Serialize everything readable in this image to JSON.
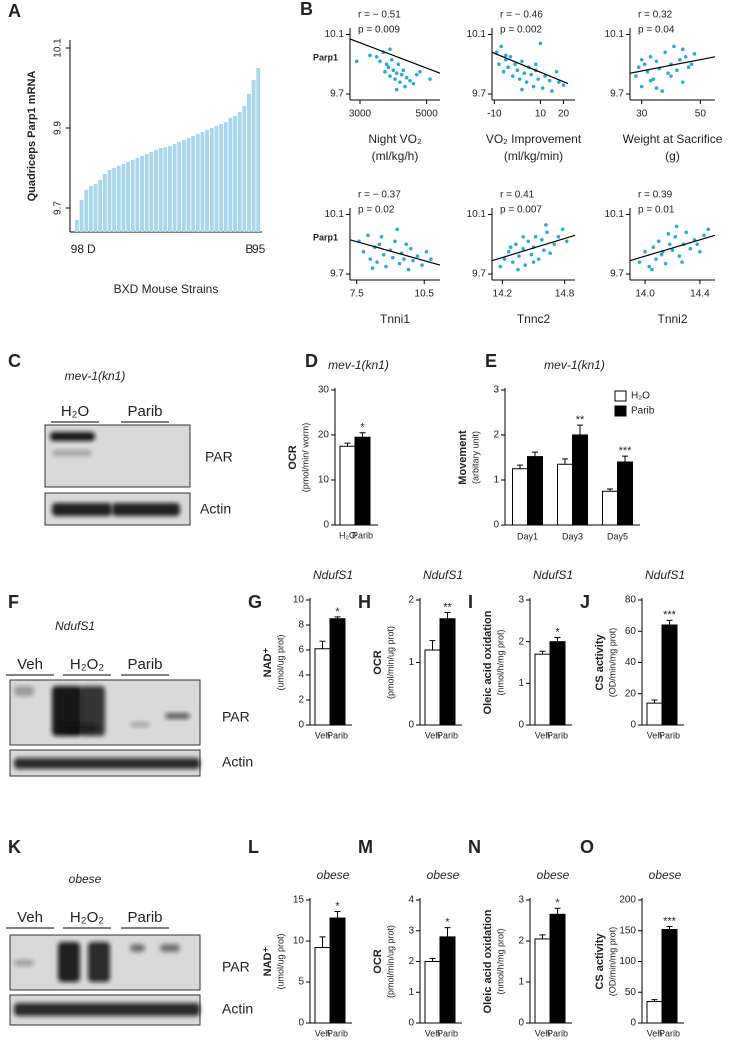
{
  "chart_data": [
    {
      "type": "bar",
      "panel": "A",
      "ylabel": "Quadriceps Parp1 mRNA",
      "xlabel": "BXD Mouse Strains",
      "color": "#a9d6ea",
      "categories": [
        "98",
        null,
        null,
        "D",
        null,
        null,
        null,
        null,
        null,
        null,
        null,
        null,
        null,
        null,
        null,
        null,
        null,
        null,
        null,
        null,
        null,
        null,
        null,
        null,
        null,
        null,
        null,
        null,
        null,
        null,
        null,
        null,
        null,
        null,
        null,
        null,
        null,
        "B",
        null,
        "95"
      ],
      "values": [
        9.67,
        9.72,
        9.745,
        9.755,
        9.76,
        9.77,
        9.785,
        9.795,
        9.8,
        9.805,
        9.81,
        9.815,
        9.82,
        9.825,
        9.83,
        9.835,
        9.84,
        9.845,
        9.85,
        9.852,
        9.855,
        9.86,
        9.865,
        9.87,
        9.875,
        9.88,
        9.885,
        9.89,
        9.895,
        9.9,
        9.905,
        9.91,
        9.915,
        9.925,
        9.93,
        9.94,
        9.955,
        9.985,
        10.02,
        10.05
      ],
      "ylim": [
        9.64,
        10.12
      ],
      "yticks": [
        9.7,
        9.9,
        10.1
      ]
    },
    {
      "type": "scatter",
      "panel": "B",
      "annotations": [
        "r = − 0.51",
        "p = 0.009"
      ],
      "ylabel": "Parp1",
      "xlabel": [
        "Night VO₂",
        "(ml/kg/h)"
      ],
      "color": "#29a9e0",
      "x": [
        3500,
        3600,
        3700,
        3750,
        3800,
        3850,
        3900,
        3950,
        4000,
        4050,
        4100,
        4150,
        4200,
        4250,
        4300,
        4350,
        4400,
        4500,
        4600,
        4700,
        3300,
        3900,
        4100,
        4800,
        5100,
        2900
      ],
      "y": [
        9.95,
        9.92,
        9.98,
        9.85,
        9.9,
        9.88,
        9.82,
        9.93,
        9.86,
        9.8,
        9.84,
        9.9,
        9.78,
        9.83,
        9.86,
        9.75,
        9.81,
        9.79,
        9.77,
        9.83,
        9.96,
        10.0,
        9.73,
        9.85,
        9.8,
        9.92
      ],
      "fit": {
        "x": [
          2700,
          5400
        ],
        "y": [
          10.07,
          9.84
        ]
      },
      "xlim": [
        2700,
        5400
      ],
      "xticks": [
        3000,
        5000
      ],
      "ylim": [
        9.66,
        10.13
      ],
      "yticks": [
        9.7,
        10.1
      ]
    },
    {
      "type": "scatter",
      "annotations": [
        "r = − 0.46",
        "p = 0.002"
      ],
      "xlabel": [
        "VO₂ Improvement",
        "(ml/kg/min)"
      ],
      "color": "#29a9e0",
      "x": [
        -9,
        -8,
        -7,
        -6,
        -5,
        -4,
        -3,
        -2,
        -1,
        0,
        1,
        2,
        3,
        4,
        5,
        6,
        7,
        8,
        9,
        10,
        11,
        12,
        14,
        15,
        17,
        18,
        20,
        -5,
        2,
        8
      ],
      "y": [
        9.98,
        9.9,
        10.02,
        9.85,
        9.93,
        9.88,
        9.95,
        9.82,
        9.9,
        9.86,
        9.8,
        9.92,
        9.84,
        9.78,
        9.88,
        9.83,
        9.75,
        9.86,
        9.8,
        10.04,
        9.74,
        9.82,
        9.79,
        9.72,
        9.85,
        9.78,
        9.76,
        9.96,
        9.73,
        9.9
      ],
      "fit": {
        "x": [
          -11,
          22
        ],
        "y": [
          9.98,
          9.77
        ]
      },
      "xlim": [
        -11,
        25
      ],
      "xticks": [
        -10,
        10,
        20
      ],
      "ylim": [
        9.66,
        10.13
      ],
      "yticks": [
        9.7,
        10.1
      ]
    },
    {
      "type": "scatter",
      "annotations": [
        "r = 0.32",
        "p = 0.04"
      ],
      "xlabel": [
        "Weight at Sacrifice",
        "(g)"
      ],
      "color": "#29a9e0",
      "x": [
        28,
        29,
        30,
        31,
        32,
        33,
        34,
        35,
        36,
        37,
        38,
        39,
        40,
        41,
        42,
        43,
        44,
        45,
        46,
        47,
        48,
        30,
        35,
        40,
        44,
        33
      ],
      "y": [
        9.82,
        9.88,
        9.75,
        9.9,
        9.85,
        9.95,
        9.8,
        9.92,
        9.87,
        9.72,
        9.98,
        9.84,
        9.9,
        10.02,
        9.86,
        9.93,
        9.78,
        9.95,
        9.88,
        9.9,
        9.97,
        9.93,
        9.74,
        9.82,
        10.0,
        9.79
      ],
      "fit": {
        "x": [
          26,
          55
        ],
        "y": [
          9.84,
          9.95
        ]
      },
      "xlim": [
        26,
        55
      ],
      "xticks": [
        30,
        50
      ],
      "ylim": [
        9.66,
        10.13
      ],
      "yticks": [
        9.7,
        10.1
      ]
    },
    {
      "type": "scatter",
      "annotations": [
        "r = − 0.37",
        "p = 0.02"
      ],
      "ylabel": "Parp1",
      "xlabel": [
        "Tnni1"
      ],
      "color": "#29a9e0",
      "x": [
        7.6,
        7.8,
        8.0,
        8.1,
        8.3,
        8.4,
        8.5,
        8.7,
        8.8,
        9.0,
        9.1,
        9.2,
        9.4,
        9.5,
        9.6,
        9.8,
        9.9,
        10.0,
        10.2,
        10.4,
        10.6,
        10.8,
        8.2,
        9.3,
        9.7,
        8.6
      ],
      "y": [
        9.92,
        9.85,
        9.96,
        9.8,
        9.88,
        9.78,
        9.9,
        9.83,
        9.75,
        9.86,
        9.81,
        9.92,
        9.77,
        9.84,
        9.8,
        9.73,
        9.87,
        9.79,
        9.82,
        9.76,
        9.85,
        9.8,
        9.74,
        10.0,
        9.9,
        9.95
      ],
      "fit": {
        "x": [
          7.2,
          11.2
        ],
        "y": [
          9.93,
          9.76
        ]
      },
      "xlim": [
        7.2,
        11.2
      ],
      "xticks": [
        7.5,
        10.5
      ],
      "ylim": [
        9.66,
        10.13
      ],
      "yticks": [
        9.7,
        10.1
      ]
    },
    {
      "type": "scatter",
      "annotations": [
        "r = 0.41",
        "p = 0.007"
      ],
      "xlabel": [
        "Tnnc2"
      ],
      "color": "#29a9e0",
      "x": [
        14.18,
        14.22,
        14.26,
        14.3,
        14.33,
        14.36,
        14.4,
        14.42,
        14.45,
        14.48,
        14.5,
        14.52,
        14.55,
        14.58,
        14.6,
        14.63,
        14.66,
        14.7,
        14.74,
        14.78,
        14.82,
        14.35,
        14.5,
        14.62,
        14.4,
        14.28
      ],
      "y": [
        9.75,
        9.8,
        9.85,
        9.78,
        9.9,
        9.82,
        9.87,
        9.76,
        9.92,
        9.83,
        9.88,
        9.95,
        9.8,
        9.93,
        9.86,
        9.98,
        9.84,
        9.9,
        9.95,
        10.0,
        9.92,
        9.73,
        9.78,
        10.03,
        9.95,
        9.88
      ],
      "fit": {
        "x": [
          14.1,
          14.9
        ],
        "y": [
          9.79,
          9.96
        ]
      },
      "xlim": [
        14.1,
        14.9
      ],
      "xticks": [
        14.2,
        14.8
      ],
      "ylim": [
        9.66,
        10.13
      ],
      "yticks": [
        9.7,
        10.1
      ]
    },
    {
      "type": "scatter",
      "annotations": [
        "r = 0.39",
        "p = 0.01"
      ],
      "xlabel": [
        "Tnni2"
      ],
      "color": "#29a9e0",
      "x": [
        13.96,
        14.0,
        14.03,
        14.06,
        14.08,
        14.1,
        14.12,
        14.15,
        14.18,
        14.2,
        14.22,
        14.25,
        14.28,
        14.3,
        14.33,
        14.36,
        14.4,
        14.43,
        14.46,
        14.05,
        14.17,
        14.27,
        14.38,
        14.13,
        14.23
      ],
      "y": [
        9.78,
        9.85,
        9.75,
        9.88,
        9.8,
        9.92,
        9.83,
        9.77,
        9.9,
        9.86,
        9.95,
        9.82,
        9.9,
        9.98,
        9.87,
        9.93,
        9.85,
        9.96,
        10.0,
        9.73,
        9.97,
        9.78,
        9.9,
        9.85,
        10.02
      ],
      "fit": {
        "x": [
          13.89,
          14.51
        ],
        "y": [
          9.79,
          9.96
        ]
      },
      "xlim": [
        13.89,
        14.51
      ],
      "xticks": [
        {
          "value": 14,
          "label": "14.0"
        },
        14.4
      ],
      "ylim": [
        9.66,
        10.13
      ],
      "yticks": [
        9.7,
        10.1
      ]
    },
    {
      "type": "bar",
      "panel": "D",
      "title": "mev-1(kn1)",
      "ylabel": [
        "OCR",
        "(pmol/min/ worm)"
      ],
      "categories": [
        "H₂O",
        "Parib"
      ],
      "values": [
        17.5,
        19.5
      ],
      "errors": [
        0.7,
        1.0
      ],
      "colors": [
        "#ffffff",
        "#000000"
      ],
      "annotations": [
        null,
        "*"
      ],
      "ylim": [
        0,
        30
      ],
      "yticks": [
        0,
        10,
        20,
        30
      ]
    },
    {
      "type": "bar",
      "panel": "E",
      "title": "mev-1(kn1)",
      "ylabel": [
        "Movement",
        "(arbitary unit)"
      ],
      "categories": [
        "Day1",
        "Day3",
        "Day5"
      ],
      "legend": "upper right",
      "series": [
        {
          "name": "H₂O",
          "color": "#ffffff",
          "values": [
            1.25,
            1.35,
            0.75
          ],
          "errors": [
            0.08,
            0.12,
            0.05
          ]
        },
        {
          "name": "Parib",
          "color": "#000000",
          "values": [
            1.52,
            2.0,
            1.4
          ],
          "errors": [
            0.1,
            0.22,
            0.13
          ],
          "annotations": [
            null,
            "**",
            "***"
          ]
        }
      ],
      "ylim": [
        0,
        3
      ],
      "yticks": [
        0,
        1,
        2,
        3
      ]
    },
    {
      "type": "bar",
      "panel": "G",
      "title": "NdufS1",
      "ylabel": [
        "NAD⁺",
        "(umol/ug prot)"
      ],
      "categories": [
        "Veh",
        "Parib"
      ],
      "values": [
        6.1,
        8.5
      ],
      "errors": [
        0.6,
        0.15
      ],
      "colors": [
        "#ffffff",
        "#000000"
      ],
      "annotations": [
        null,
        "*"
      ],
      "ylim": [
        0,
        10
      ],
      "yticks": [
        0,
        2,
        4,
        6,
        8,
        10
      ]
    },
    {
      "type": "bar",
      "panel": "H",
      "title": "NdufS1",
      "ylabel": [
        "OCR",
        "(pmol/min/ug prot)"
      ],
      "categories": [
        "Veh",
        "Parib"
      ],
      "values": [
        1.2,
        1.7
      ],
      "errors": [
        0.15,
        0.1
      ],
      "colors": [
        "#ffffff",
        "#000000"
      ],
      "annotations": [
        null,
        "**"
      ],
      "ylim": [
        0,
        2
      ],
      "yticks": [
        0,
        1,
        2
      ]
    },
    {
      "type": "bar",
      "panel": "I",
      "title": "NdufS1",
      "ylabel": [
        "Oleic acid oxidation",
        "(nmol/h/mg prot)"
      ],
      "categories": [
        "Veh",
        "Parib"
      ],
      "values": [
        1.7,
        2.0
      ],
      "errors": [
        0.07,
        0.1
      ],
      "colors": [
        "#ffffff",
        "#000000"
      ],
      "annotations": [
        null,
        "*"
      ],
      "ylim": [
        0,
        3
      ],
      "yticks": [
        0,
        1,
        2,
        3
      ]
    },
    {
      "type": "bar",
      "panel": "J",
      "title": "NdufS1",
      "ylabel": [
        "CS activity",
        "(OD/min/mg prot)"
      ],
      "categories": [
        "Veh",
        "Parib"
      ],
      "values": [
        14,
        64
      ],
      "errors": [
        2,
        3
      ],
      "colors": [
        "#ffffff",
        "#000000"
      ],
      "annotations": [
        null,
        "***"
      ],
      "ylim": [
        0,
        80
      ],
      "yticks": [
        0,
        20,
        40,
        60,
        80
      ]
    },
    {
      "type": "bar",
      "panel": "L",
      "title": "obese",
      "ylabel": [
        "NAD⁺",
        "(umol/ug prot)"
      ],
      "categories": [
        "Veh",
        "Parib"
      ],
      "values": [
        9.2,
        12.8
      ],
      "errors": [
        1.3,
        0.8
      ],
      "colors": [
        "#ffffff",
        "#000000"
      ],
      "annotations": [
        null,
        "*"
      ],
      "ylim": [
        0,
        15
      ],
      "yticks": [
        0,
        5,
        10,
        15
      ]
    },
    {
      "type": "bar",
      "panel": "M",
      "title": "obese",
      "ylabel": [
        "OCR",
        "(pmol/min/ug prot)"
      ],
      "categories": [
        "Veh",
        "Parib"
      ],
      "values": [
        2.0,
        2.8
      ],
      "errors": [
        0.1,
        0.3
      ],
      "colors": [
        "#ffffff",
        "#000000"
      ],
      "annotations": [
        null,
        "*"
      ],
      "ylim": [
        0,
        4
      ],
      "yticks": [
        0,
        1,
        2,
        3,
        4
      ]
    },
    {
      "type": "bar",
      "panel": "N",
      "title": "obese",
      "ylabel": [
        "Oleic acid oxidation",
        "(nmol/h/mg prot)"
      ],
      "categories": [
        "Veh",
        "Parib"
      ],
      "values": [
        2.05,
        2.65
      ],
      "errors": [
        0.1,
        0.15
      ],
      "colors": [
        "#ffffff",
        "#000000"
      ],
      "annotations": [
        null,
        "*"
      ],
      "ylim": [
        0,
        3
      ],
      "yticks": [
        0,
        1,
        2,
        3
      ]
    },
    {
      "type": "bar",
      "panel": "O",
      "title": "obese",
      "ylabel": [
        "CS activity",
        "(OD/min/mg prot)"
      ],
      "categories": [
        "Veh",
        "Parib"
      ],
      "values": [
        35,
        152
      ],
      "errors": [
        3,
        5
      ],
      "colors": [
        "#ffffff",
        "#000000"
      ],
      "annotations": [
        null,
        "***"
      ],
      "ylim": [
        0,
        200
      ],
      "yticks": [
        0,
        50,
        100,
        150,
        200
      ]
    }
  ],
  "blots": [
    {
      "panel": "C",
      "title": "mev-1(kn1)",
      "lanes": [
        "H₂O",
        "Parib"
      ],
      "rows": [
        "PAR",
        "Actin"
      ]
    },
    {
      "panel": "F",
      "title": "NdufS1",
      "lanes": [
        "Veh",
        "H₂O₂",
        "Parib"
      ],
      "rows": [
        "PAR",
        "Actin"
      ]
    },
    {
      "panel": "K",
      "title": "obese",
      "lanes": [
        "Veh",
        "H₂O₂",
        "Parib"
      ],
      "rows": [
        "PAR",
        "Actin"
      ]
    }
  ]
}
